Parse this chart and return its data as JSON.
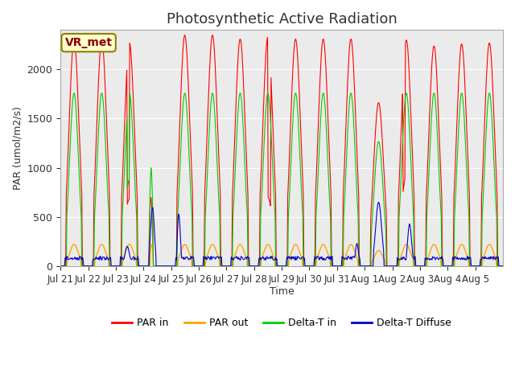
{
  "title": "Photosynthetic Active Radiation",
  "ylabel": "PAR (umol/m2/s)",
  "xlabel": "Time",
  "ylim": [
    0,
    2400
  ],
  "line_colors": {
    "par_in": "#ff0000",
    "par_out": "#ffa500",
    "delta_t_in": "#00cc00",
    "delta_t_diffuse": "#0000cc"
  },
  "legend_labels": [
    "PAR in",
    "PAR out",
    "Delta-T in",
    "Delta-T Diffuse"
  ],
  "annotation_text": "VR_met",
  "xtick_labels": [
    "Jul 21",
    "Jul 22",
    "Jul 23",
    "Jul 24",
    "Jul 25",
    "Jul 26",
    "Jul 27",
    "Jul 28",
    "Jul 29",
    "Jul 30",
    "Jul 31",
    "Aug 1",
    "Aug 2",
    "Aug 3",
    "Aug 4",
    "Aug 5"
  ],
  "title_fontsize": 13,
  "axis_bg": "#ebebeb"
}
